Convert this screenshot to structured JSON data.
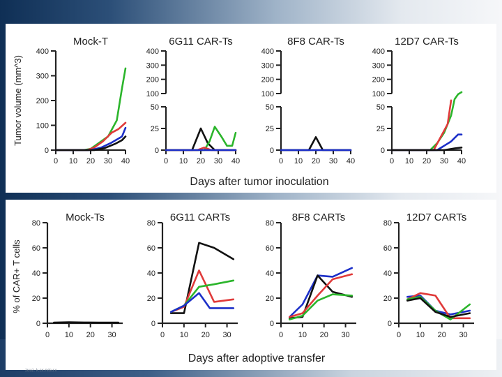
{
  "footer": {
    "note": "zuuz. k.cx.rvisu.v"
  },
  "chart_data": [
    {
      "type": "line",
      "panel": "top",
      "ylabel": "Tumor volume (mm^3)",
      "xlabel": "Days after tumor inoculation",
      "broken_axis": true,
      "xlim": [
        0,
        40
      ],
      "x_ticks": [
        0,
        10,
        20,
        30,
        40
      ],
      "y_upper_ticks": [
        100,
        200,
        300,
        400
      ],
      "y_lower_ticks": [
        0,
        25,
        50
      ],
      "colors": {
        "green": "#2bb52b",
        "red": "#e03a3a",
        "blue": "#1c2fc8",
        "black": "#111111"
      },
      "subplots": [
        {
          "title": "Mock-T",
          "single_scale": true,
          "y_ticks": [
            0,
            100,
            200,
            300,
            400
          ],
          "ylim": [
            0,
            400
          ],
          "series": [
            {
              "color": "green",
              "points": [
                [
                  0,
                  0
                ],
                [
                  16,
                  0
                ],
                [
                  20,
                  5
                ],
                [
                  25,
                  30
                ],
                [
                  30,
                  55
                ],
                [
                  35,
                  120
                ],
                [
                  38,
                  250
                ],
                [
                  40,
                  330
                ]
              ]
            },
            {
              "color": "red",
              "points": [
                [
                  0,
                  0
                ],
                [
                  18,
                  0
                ],
                [
                  22,
                  10
                ],
                [
                  27,
                  35
                ],
                [
                  32,
                  70
                ],
                [
                  36,
                  85
                ],
                [
                  40,
                  110
                ]
              ]
            },
            {
              "color": "blue",
              "points": [
                [
                  0,
                  0
                ],
                [
                  20,
                  0
                ],
                [
                  26,
                  10
                ],
                [
                  32,
                  30
                ],
                [
                  38,
                  55
                ],
                [
                  40,
                  90
                ]
              ]
            },
            {
              "color": "black",
              "points": [
                [
                  0,
                  0
                ],
                [
                  22,
                  0
                ],
                [
                  28,
                  8
                ],
                [
                  34,
                  25
                ],
                [
                  38,
                  40
                ],
                [
                  40,
                  55
                ]
              ]
            }
          ]
        },
        {
          "title": "6G11 CAR-Ts",
          "series": [
            {
              "color": "black",
              "points": [
                [
                  0,
                  0
                ],
                [
                  15,
                  0
                ],
                [
                  20,
                  25
                ],
                [
                  24,
                  8
                ],
                [
                  28,
                  0
                ],
                [
                  40,
                  0
                ]
              ]
            },
            {
              "color": "green",
              "points": [
                [
                  0,
                  0
                ],
                [
                  22,
                  0
                ],
                [
                  25,
                  10
                ],
                [
                  28,
                  27
                ],
                [
                  32,
                  15
                ],
                [
                  35,
                  5
                ],
                [
                  38,
                  5
                ],
                [
                  40,
                  20
                ]
              ]
            },
            {
              "color": "red",
              "points": [
                [
                  0,
                  0
                ],
                [
                  18,
                  0
                ],
                [
                  22,
                  3
                ],
                [
                  26,
                  0
                ],
                [
                  40,
                  0
                ]
              ]
            },
            {
              "color": "blue",
              "points": [
                [
                  0,
                  0
                ],
                [
                  40,
                  0
                ]
              ]
            }
          ]
        },
        {
          "title": "8F8 CAR-Ts",
          "series": [
            {
              "color": "black",
              "points": [
                [
                  0,
                  0
                ],
                [
                  16,
                  0
                ],
                [
                  20,
                  15
                ],
                [
                  24,
                  0
                ],
                [
                  40,
                  0
                ]
              ]
            },
            {
              "color": "blue",
              "points": [
                [
                  0,
                  0
                ],
                [
                  40,
                  0
                ]
              ]
            }
          ]
        },
        {
          "title": "12D7 CAR-Ts",
          "series": [
            {
              "color": "green",
              "points": [
                [
                  0,
                  0
                ],
                [
                  22,
                  0
                ],
                [
                  26,
                  8
                ],
                [
                  30,
                  20
                ],
                [
                  34,
                  40
                ],
                [
                  36,
                  60
                ],
                [
                  38,
                  95
                ],
                [
                  40,
                  110
                ]
              ]
            },
            {
              "color": "red",
              "points": [
                [
                  0,
                  0
                ],
                [
                  24,
                  0
                ],
                [
                  28,
                  15
                ],
                [
                  32,
                  30
                ],
                [
                  34,
                  52
                ]
              ]
            },
            {
              "color": "blue",
              "points": [
                [
                  0,
                  0
                ],
                [
                  26,
                  0
                ],
                [
                  30,
                  5
                ],
                [
                  34,
                  10
                ],
                [
                  38,
                  18
                ],
                [
                  40,
                  18
                ]
              ]
            },
            {
              "color": "black",
              "points": [
                [
                  0,
                  0
                ],
                [
                  30,
                  0
                ],
                [
                  36,
                  2
                ],
                [
                  40,
                  3
                ]
              ]
            }
          ]
        }
      ]
    },
    {
      "type": "line",
      "panel": "bottom",
      "ylabel": "% of CAR+ T cells",
      "xlabel": "Days after adoptive transfer",
      "xlim": [
        0,
        35
      ],
      "x_ticks": [
        0,
        10,
        20,
        30
      ],
      "ylim": [
        0,
        80
      ],
      "y_ticks": [
        0,
        20,
        40,
        60,
        80
      ],
      "colors": {
        "green": "#2bb52b",
        "red": "#e03a3a",
        "blue": "#1c2fc8",
        "black": "#111111"
      },
      "subplots": [
        {
          "title": "Mock-Ts",
          "series": [
            {
              "color": "black",
              "points": [
                [
                  3,
                  0.5
                ],
                [
                  10,
                  0.8
                ],
                [
                  17,
                  0.6
                ],
                [
                  24,
                  0.5
                ],
                [
                  33,
                  0.5
                ]
              ]
            }
          ]
        },
        {
          "title": "6G11 CARTs",
          "series": [
            {
              "color": "black",
              "points": [
                [
                  4,
                  8
                ],
                [
                  10,
                  8
                ],
                [
                  17,
                  64
                ],
                [
                  24,
                  60
                ],
                [
                  33,
                  51
                ]
              ]
            },
            {
              "color": "red",
              "points": [
                [
                  4,
                  9
                ],
                [
                  10,
                  13
                ],
                [
                  17,
                  42
                ],
                [
                  24,
                  17
                ],
                [
                  33,
                  19
                ]
              ]
            },
            {
              "color": "green",
              "points": [
                [
                  4,
                  9
                ],
                [
                  10,
                  14
                ],
                [
                  17,
                  29
                ],
                [
                  24,
                  31
                ],
                [
                  33,
                  34
                ]
              ]
            },
            {
              "color": "blue",
              "points": [
                [
                  4,
                  9
                ],
                [
                  10,
                  14
                ],
                [
                  17,
                  24
                ],
                [
                  22,
                  12
                ],
                [
                  33,
                  12
                ]
              ]
            }
          ]
        },
        {
          "title": "8F8 CARTs",
          "series": [
            {
              "color": "blue",
              "points": [
                [
                  4,
                  5
                ],
                [
                  10,
                  15
                ],
                [
                  17,
                  38
                ],
                [
                  24,
                  37
                ],
                [
                  33,
                  44
                ]
              ]
            },
            {
              "color": "black",
              "points": [
                [
                  4,
                  4
                ],
                [
                  10,
                  5
                ],
                [
                  17,
                  38
                ],
                [
                  24,
                  25
                ],
                [
                  33,
                  21
                ]
              ]
            },
            {
              "color": "red",
              "points": [
                [
                  4,
                  5
                ],
                [
                  10,
                  8
                ],
                [
                  17,
                  22
                ],
                [
                  24,
                  35
                ],
                [
                  33,
                  39
                ]
              ]
            },
            {
              "color": "green",
              "points": [
                [
                  4,
                  3
                ],
                [
                  10,
                  6
                ],
                [
                  17,
                  18
                ],
                [
                  24,
                  23
                ],
                [
                  33,
                  22
                ]
              ]
            }
          ]
        },
        {
          "title": "12D7 CARTs",
          "series": [
            {
              "color": "blue",
              "points": [
                [
                  4,
                  21
                ],
                [
                  10,
                  22
                ],
                [
                  17,
                  10
                ],
                [
                  24,
                  7
                ],
                [
                  33,
                  10
                ]
              ]
            },
            {
              "color": "red",
              "points": [
                [
                  4,
                  19
                ],
                [
                  10,
                  24
                ],
                [
                  17,
                  22
                ],
                [
                  24,
                  4
                ],
                [
                  33,
                  4
                ]
              ]
            },
            {
              "color": "green",
              "points": [
                [
                  4,
                  19
                ],
                [
                  10,
                  21
                ],
                [
                  17,
                  10
                ],
                [
                  24,
                  3
                ],
                [
                  33,
                  15
                ]
              ]
            },
            {
              "color": "black",
              "points": [
                [
                  4,
                  18
                ],
                [
                  10,
                  20
                ],
                [
                  17,
                  9
                ],
                [
                  24,
                  5
                ],
                [
                  33,
                  8
                ]
              ]
            }
          ]
        }
      ]
    }
  ]
}
